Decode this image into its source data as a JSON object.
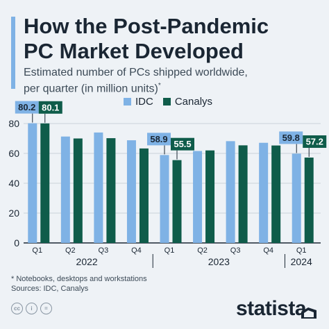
{
  "header": {
    "title_line1": "How the Post-Pandemic",
    "title_line2": "PC Market Developed",
    "subtitle_line1": "Estimated number of PCs shipped worldwide,",
    "subtitle_line2": "per quarter (in million units)",
    "subtitle_mark": "*"
  },
  "legend": {
    "idc": "IDC",
    "canalys": "Canalys"
  },
  "colors": {
    "idc": "#7fb2e5",
    "canalys": "#0f5c4a",
    "axis": "#1a2633",
    "grid": "#c9d2db"
  },
  "chart_data": {
    "type": "bar",
    "categories": [
      "Q1",
      "Q2",
      "Q3",
      "Q4",
      "Q1",
      "Q2",
      "Q3",
      "Q4",
      "Q1"
    ],
    "years": [
      {
        "label": "2022",
        "start": 0,
        "end": 3
      },
      {
        "label": "2023",
        "start": 4,
        "end": 7
      },
      {
        "label": "2024",
        "start": 8,
        "end": 8
      }
    ],
    "series": [
      {
        "name": "IDC",
        "color": "#7fb2e5",
        "values": [
          80.2,
          71.3,
          74.0,
          68.8,
          58.9,
          61.6,
          68.2,
          67.1,
          59.8
        ]
      },
      {
        "name": "Canalys",
        "color": "#0f5c4a",
        "values": [
          80.1,
          70.0,
          70.2,
          63.3,
          55.5,
          62.0,
          65.4,
          65.3,
          57.2
        ]
      }
    ],
    "labels": [
      {
        "series": 0,
        "index": 0,
        "text": "80.2"
      },
      {
        "series": 1,
        "index": 0,
        "text": "80.1"
      },
      {
        "series": 0,
        "index": 4,
        "text": "58.9"
      },
      {
        "series": 1,
        "index": 4,
        "text": "55.5"
      },
      {
        "series": 0,
        "index": 8,
        "text": "59.8"
      },
      {
        "series": 1,
        "index": 8,
        "text": "57.2"
      }
    ],
    "yticks": [
      0,
      20,
      40,
      60,
      80
    ],
    "ylim": [
      0,
      90
    ],
    "grid": true,
    "legend_position": "top"
  },
  "footnote": {
    "line1": "* Notebooks, desktops and workstations",
    "line2": "Sources: IDC, Canalys"
  },
  "footer": {
    "brand": "statista",
    "icons": [
      "cc-icon",
      "person-icon",
      "equals-icon"
    ]
  }
}
